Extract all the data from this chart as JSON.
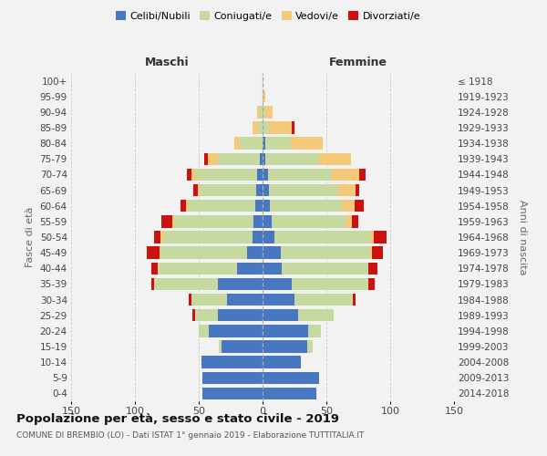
{
  "age_groups": [
    "0-4",
    "5-9",
    "10-14",
    "15-19",
    "20-24",
    "25-29",
    "30-34",
    "35-39",
    "40-44",
    "45-49",
    "50-54",
    "55-59",
    "60-64",
    "65-69",
    "70-74",
    "75-79",
    "80-84",
    "85-89",
    "90-94",
    "95-99",
    "100+"
  ],
  "birth_years": [
    "2014-2018",
    "2009-2013",
    "2004-2008",
    "1999-2003",
    "1994-1998",
    "1989-1993",
    "1984-1988",
    "1979-1983",
    "1974-1978",
    "1969-1973",
    "1964-1968",
    "1959-1963",
    "1954-1958",
    "1949-1953",
    "1944-1948",
    "1939-1943",
    "1934-1938",
    "1929-1933",
    "1924-1928",
    "1919-1923",
    "≤ 1918"
  ],
  "males": {
    "celibi": [
      47,
      47,
      48,
      32,
      42,
      35,
      28,
      35,
      20,
      12,
      8,
      7,
      6,
      5,
      4,
      2,
      0,
      0,
      0,
      0,
      0
    ],
    "coniugati": [
      0,
      0,
      0,
      2,
      8,
      18,
      28,
      50,
      62,
      68,
      70,
      62,
      52,
      44,
      48,
      33,
      18,
      3,
      2,
      0,
      0
    ],
    "vedovi": [
      0,
      0,
      0,
      0,
      0,
      0,
      0,
      0,
      0,
      1,
      2,
      2,
      2,
      2,
      4,
      8,
      4,
      5,
      2,
      0,
      0
    ],
    "divorziati": [
      0,
      0,
      0,
      0,
      0,
      2,
      2,
      2,
      5,
      10,
      5,
      8,
      4,
      3,
      3,
      3,
      0,
      0,
      0,
      0,
      0
    ]
  },
  "females": {
    "nubili": [
      42,
      44,
      30,
      35,
      36,
      28,
      25,
      23,
      15,
      14,
      9,
      7,
      6,
      5,
      4,
      2,
      2,
      0,
      0,
      0,
      0
    ],
    "coniugate": [
      0,
      0,
      0,
      4,
      10,
      28,
      46,
      60,
      68,
      70,
      75,
      58,
      56,
      54,
      50,
      42,
      20,
      5,
      2,
      0,
      0
    ],
    "vedove": [
      0,
      0,
      0,
      0,
      0,
      0,
      0,
      0,
      0,
      2,
      3,
      5,
      10,
      14,
      22,
      25,
      25,
      18,
      6,
      2,
      0
    ],
    "divorziate": [
      0,
      0,
      0,
      0,
      0,
      0,
      2,
      5,
      7,
      8,
      10,
      5,
      7,
      3,
      5,
      0,
      0,
      2,
      0,
      0,
      0
    ]
  },
  "colors": {
    "celibi_nubili": "#4777c0",
    "coniugati": "#c5d9a0",
    "vedovi": "#f5c97a",
    "divorziati": "#cc1111"
  },
  "xlim": 150,
  "title": "Popolazione per età, sesso e stato civile - 2019",
  "subtitle": "COMUNE DI BREMBIO (LO) - Dati ISTAT 1° gennaio 2019 - Elaborazione TUTTITALIA.IT",
  "xlabel_left": "Maschi",
  "xlabel_right": "Femmine",
  "ylabel_left": "Fasce di età",
  "ylabel_right": "Anni di nascita",
  "background_color": "#f2f2f2",
  "grid_color": "#cccccc"
}
